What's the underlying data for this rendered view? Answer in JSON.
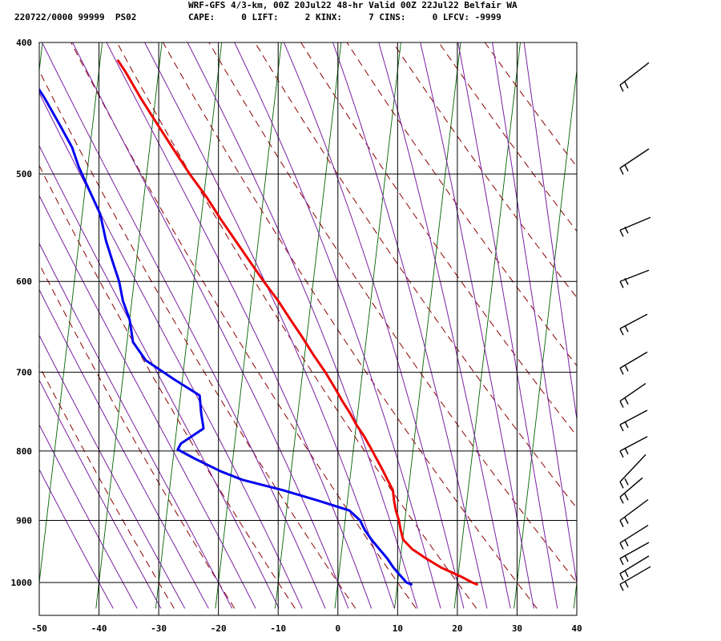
{
  "header": {
    "title": "WRF-GFS 4/3-km, 00Z 20Jul22 48-hr Valid 00Z 22Jul22 Belfair WA",
    "info_left": "220722/0000 99999  PS02",
    "info_right": "CAPE:     0 LIFT:     2 KINX:     7 CINS:     0 LFCV: -9999"
  },
  "chart_data": {
    "type": "line",
    "title": "WRF-GFS 4/3-km, 00Z 20Jul22 48-hr Valid 00Z 22Jul22 Belfair WA",
    "xlabel": "",
    "ylabel": "",
    "skew_t_log_p": true,
    "xlim": [
      -50,
      40
    ],
    "ylim_pressure": [
      1040,
      400
    ],
    "x_ticks": [
      -50,
      -40,
      -30,
      -20,
      -10,
      0,
      10,
      20,
      30,
      40
    ],
    "p_ticks": [
      400,
      500,
      600,
      700,
      800,
      900,
      1000
    ],
    "grid": true,
    "colors": {
      "temperature": "#ee0000",
      "dewpoint": "#0000ee",
      "isotherm": "#006400",
      "dry_adiabat": "#8b0000",
      "moist_adiabat": "#7a1fa2"
    },
    "series": [
      {
        "id": "temperature",
        "pressure": [
          1004,
          1000,
          990,
          975,
          960,
          945,
          930,
          915,
          900,
          885,
          870,
          855,
          840,
          825,
          810,
          795,
          780,
          765,
          750,
          735,
          720,
          700,
          680,
          660,
          640,
          620,
          600,
          580,
          560,
          540,
          520,
          500,
          480,
          460,
          440,
          420,
          412
        ],
        "values": [
          23.5,
          22.5,
          20.5,
          17.0,
          14.3,
          11.8,
          10.1,
          9.5,
          9.0,
          8.3,
          7.8,
          7.4,
          6.3,
          5.2,
          4.0,
          2.8,
          1.5,
          0.0,
          -1.3,
          -2.8,
          -4.2,
          -6.2,
          -8.5,
          -10.7,
          -13.1,
          -15.5,
          -18.3,
          -21.0,
          -23.8,
          -26.7,
          -29.5,
          -32.8,
          -35.9,
          -39.1,
          -42.4,
          -45.6,
          -47.1
        ]
      },
      {
        "id": "dewpoint",
        "pressure": [
          1004,
          1000,
          990,
          975,
          960,
          945,
          930,
          915,
          900,
          885,
          870,
          855,
          840,
          828,
          810,
          798,
          790,
          770,
          750,
          728,
          708,
          686,
          665,
          640,
          620,
          600,
          580,
          560,
          535,
          512,
          494,
          478,
          460,
          440,
          420,
          412
        ],
        "values": [
          12.5,
          11.5,
          10.5,
          9.0,
          7.8,
          6.3,
          4.8,
          3.5,
          2.5,
          0.5,
          -5.0,
          -11.0,
          -18.0,
          -21.8,
          -26.5,
          -29.4,
          -29.0,
          -25.5,
          -26.2,
          -26.8,
          -31.5,
          -36.5,
          -39.0,
          -40.0,
          -41.5,
          -42.5,
          -44.0,
          -45.5,
          -47.0,
          -49.5,
          -51.5,
          -53.0,
          -55.5,
          -58.5,
          -62.0,
          -64.0
        ]
      }
    ],
    "wind_barbs": [
      {
        "pressure": 1003
      },
      {
        "pressure": 985
      },
      {
        "pressure": 960
      },
      {
        "pressure": 935
      },
      {
        "pressure": 900
      },
      {
        "pressure": 865
      },
      {
        "pressure": 843
      },
      {
        "pressure": 800
      },
      {
        "pressure": 765
      },
      {
        "pressure": 735
      },
      {
        "pressure": 695
      },
      {
        "pressure": 650
      },
      {
        "pressure": 600
      },
      {
        "pressure": 550
      },
      {
        "pressure": 495
      },
      {
        "pressure": 430
      }
    ]
  }
}
